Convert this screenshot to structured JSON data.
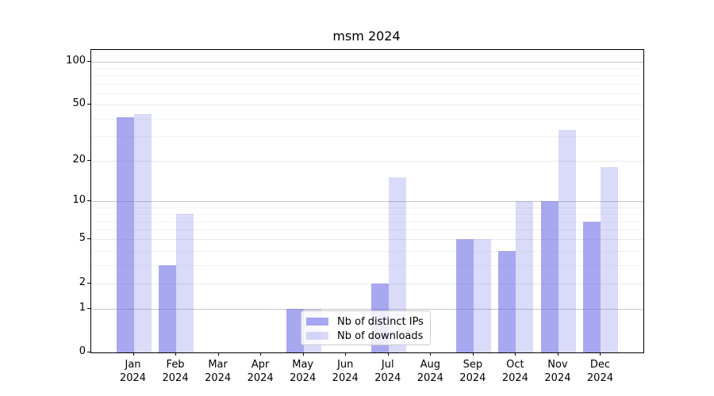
{
  "chart_data": {
    "type": "bar",
    "title": "msm 2024",
    "categories": [
      "Jan 2024",
      "Feb 2024",
      "Mar 2024",
      "Apr 2024",
      "May 2024",
      "Jun 2024",
      "Jul 2024",
      "Aug 2024",
      "Sep 2024",
      "Oct 2024",
      "Nov 2024",
      "Dec 2024"
    ],
    "series": [
      {
        "name": "Nb of distinct IPs",
        "color": "rgba(102,102,230,0.57)",
        "values": [
          41,
          3,
          0,
          0,
          1,
          0,
          2,
          0,
          5,
          4,
          10,
          7
        ]
      },
      {
        "name": "Nb of downloads",
        "color": "rgba(102,102,230,0.24)",
        "values": [
          43,
          8,
          0,
          0,
          1,
          0,
          15,
          0,
          5,
          10,
          33,
          18
        ]
      }
    ],
    "xlabel": "",
    "ylabel": "",
    "yscale": "log(v+1)",
    "ylim": [
      0,
      121
    ],
    "y_tick_labels": [
      "0",
      "1",
      "2",
      "5",
      "10",
      "20",
      "50",
      "100"
    ],
    "y_major_ticks": [
      0,
      1,
      2,
      5,
      10,
      20,
      50,
      100
    ],
    "y_decade_gridlines": [
      1,
      10,
      100
    ],
    "y_sub_gridlines": [
      2,
      5,
      20,
      50
    ],
    "y_minor_gridlines": [
      3,
      4,
      6,
      7,
      8,
      9,
      30,
      40,
      60,
      70,
      80,
      90,
      110,
      120
    ],
    "grid": true,
    "legend_position": "lower center",
    "colors": {
      "grid_decade": "#c6c6c6",
      "grid_sub": "#e9e9e9",
      "grid_minor": "#f3f3f3",
      "axis": "#000000",
      "background": "#ffffff",
      "text": "#000000"
    }
  }
}
